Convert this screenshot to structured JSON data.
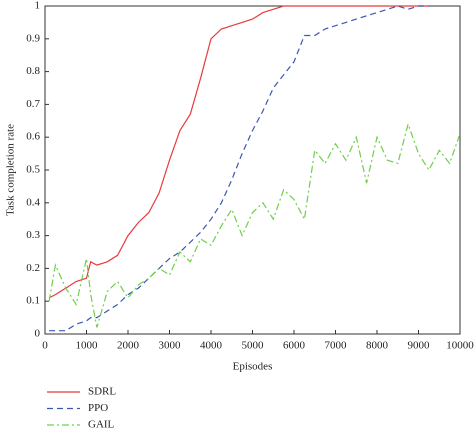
{
  "chart_data": {
    "type": "line",
    "x_label": "Episodes",
    "y_label": "Task completion rate",
    "x": [
      100,
      250,
      500,
      750,
      1000,
      1100,
      1250,
      1500,
      1750,
      2000,
      2250,
      2500,
      2750,
      3000,
      3250,
      3500,
      3750,
      4000,
      4250,
      4500,
      4750,
      5000,
      5250,
      5500,
      5750,
      6000,
      6250,
      6500,
      6750,
      7000,
      7250,
      7500,
      7750,
      8000,
      8250,
      8500,
      8750,
      9000,
      9250,
      9500,
      9750,
      10000
    ],
    "series": [
      {
        "name": "SDRL",
        "color": "#e8393b",
        "dash": "solid",
        "values": [
          0.11,
          0.12,
          0.14,
          0.16,
          0.17,
          0.22,
          0.21,
          0.22,
          0.24,
          0.3,
          0.34,
          0.37,
          0.43,
          0.53,
          0.62,
          0.67,
          0.78,
          0.9,
          0.93,
          0.94,
          0.95,
          0.96,
          0.98,
          0.99,
          1,
          1,
          1,
          1,
          1,
          1,
          1,
          1,
          1,
          1,
          1,
          1,
          1,
          1,
          1,
          null,
          null,
          null
        ]
      },
      {
        "name": "PPO",
        "color": "#3a58b0",
        "dash": "dashed",
        "values": [
          0.01,
          0.01,
          0.01,
          0.03,
          0.04,
          0.05,
          0.05,
          0.07,
          0.09,
          0.12,
          0.14,
          0.17,
          0.2,
          0.23,
          0.25,
          0.28,
          0.31,
          0.35,
          0.4,
          0.47,
          0.55,
          0.62,
          0.68,
          0.75,
          0.79,
          0.83,
          0.91,
          0.91,
          0.93,
          0.94,
          0.95,
          0.96,
          0.97,
          0.98,
          0.99,
          1,
          0.99,
          1,
          1,
          null,
          null,
          null
        ]
      },
      {
        "name": "GAIL",
        "color": "#6fcf4a",
        "dash": "dashdot",
        "values": [
          0.1,
          0.21,
          0.14,
          0.09,
          0.23,
          0.12,
          0.02,
          0.13,
          0.16,
          0.11,
          0.15,
          0.17,
          0.2,
          0.18,
          0.25,
          0.22,
          0.29,
          0.27,
          0.33,
          0.38,
          0.3,
          0.37,
          0.4,
          0.35,
          0.44,
          0.41,
          0.35,
          0.56,
          0.52,
          0.58,
          0.53,
          0.6,
          0.46,
          0.6,
          0.53,
          0.52,
          0.64,
          0.55,
          0.5,
          0.56,
          0.52,
          0.61
        ]
      }
    ],
    "xlim": [
      0,
      10000
    ],
    "ylim": [
      0,
      1
    ],
    "xticks": [
      0,
      1000,
      2000,
      3000,
      4000,
      5000,
      6000,
      7000,
      8000,
      9000,
      10000
    ],
    "yticks": [
      0,
      0.1,
      0.2,
      0.3,
      0.4,
      0.5,
      0.6,
      0.7,
      0.8,
      0.9,
      1
    ],
    "legend": "below-left"
  }
}
